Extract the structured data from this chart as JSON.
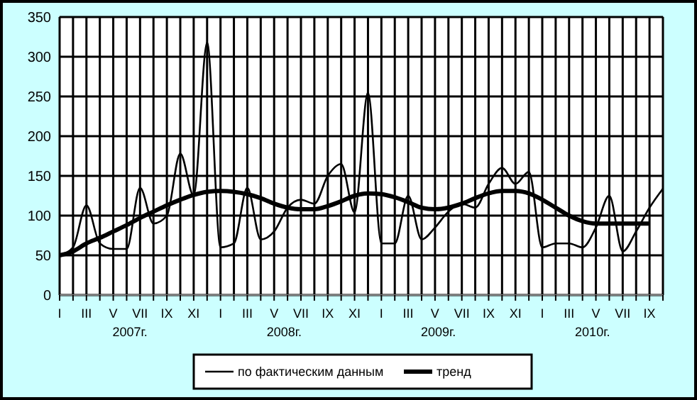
{
  "chart_data": {
    "type": "line",
    "categories": [
      "I",
      null,
      "III",
      null,
      "V",
      null,
      "VII",
      null,
      "IX",
      null,
      "XI",
      null,
      "I",
      null,
      "III",
      null,
      "V",
      null,
      "VII",
      null,
      "IX",
      null,
      "XI",
      null,
      "I",
      null,
      "III",
      null,
      "V",
      null,
      "VII",
      null,
      "IX",
      null,
      "XI",
      null,
      "I",
      null,
      "III",
      null,
      "V",
      null,
      "VII",
      null,
      "IX",
      null
    ],
    "annotations": [
      "2007г.",
      "2008г.",
      "2009г.",
      "2010г."
    ],
    "series": [
      {
        "name": "по фактическим данным",
        "color": "#000000",
        "values": [
          50,
          60,
          113,
          65,
          58,
          58,
          135,
          90,
          100,
          178,
          125,
          318,
          60,
          65,
          135,
          70,
          80,
          110,
          120,
          115,
          150,
          165,
          104,
          255,
          65,
          65,
          125,
          70,
          85,
          105,
          115,
          110,
          140,
          160,
          140,
          155,
          60,
          65,
          65,
          60,
          85,
          125,
          55,
          80,
          110,
          134
        ]
      },
      {
        "name": "тренд",
        "color": "#000000",
        "values": [
          50,
          55,
          65,
          72,
          80,
          88,
          97,
          105,
          113,
          120,
          126,
          130,
          131,
          130,
          127,
          122,
          115,
          110,
          108,
          108,
          112,
          118,
          125,
          128,
          127,
          123,
          117,
          110,
          108,
          110,
          115,
          122,
          128,
          131,
          131,
          128,
          120,
          110,
          100,
          93,
          90,
          90,
          90,
          90,
          90,
          null
        ]
      }
    ],
    "ylim": [
      0,
      350
    ],
    "yticks": [
      0,
      50,
      100,
      150,
      200,
      250,
      300,
      350
    ],
    "grid": true,
    "legend": "bottom",
    "marker": "none",
    "line_style": "solid"
  }
}
